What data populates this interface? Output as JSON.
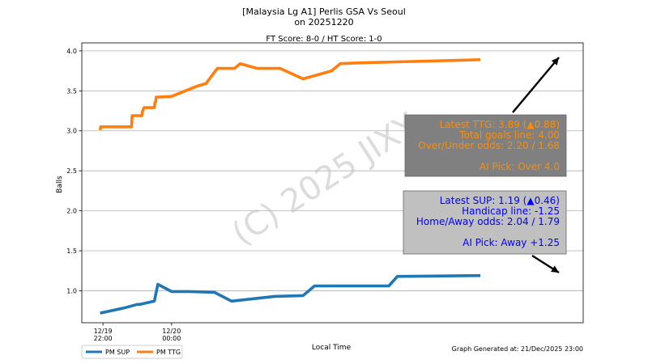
{
  "chart_data": {
    "type": "line",
    "title_lines": [
      "[Malaysia Lg A1] Perlis GSA Vs Seoul",
      "on 20251220"
    ],
    "subtitle": "FT Score: 8-0 / HT Score: 1-0",
    "xlabel": "Local Time",
    "ylabel": "Balls",
    "ylim": [
      0.6,
      4.1
    ],
    "xlim": [
      "2025-12-19 21:23",
      "2025-12-20 12:00"
    ],
    "x_ticks": [
      {
        "line1": "12/19",
        "line2": "22:00",
        "t": "2025-12-19 22:00"
      },
      {
        "line1": "12/20",
        "line2": "00:00",
        "t": "2025-12-20 00:00"
      }
    ],
    "y_ticks": [
      "1.0",
      "1.5",
      "2.0",
      "2.5",
      "3.0",
      "3.5",
      "4.0"
    ],
    "y_tick_values": [
      1.0,
      1.5,
      2.0,
      2.5,
      3.0,
      3.5,
      4.0
    ],
    "grid": "horizontal",
    "legend_position": "bottom-left",
    "generated_text": "Graph Generated at: 21/Dec/2025 23:00",
    "watermark": "(C) 2025 JIXY",
    "series": [
      {
        "name": "PM SUP",
        "color": "#1f77b4",
        "points": [
          [
            "2025-12-19 21:55",
            0.72
          ],
          [
            "2025-12-19 22:40",
            0.79
          ],
          [
            "2025-12-19 23:00",
            0.83
          ],
          [
            "2025-12-19 23:05",
            0.83
          ],
          [
            "2025-12-19 23:30",
            0.87
          ],
          [
            "2025-12-19 23:33",
            0.98
          ],
          [
            "2025-12-19 23:36",
            1.08
          ],
          [
            "2025-12-20 00:00",
            0.99
          ],
          [
            "2025-12-20 00:30",
            0.99
          ],
          [
            "2025-12-20 01:15",
            0.98
          ],
          [
            "2025-12-20 01:45",
            0.87
          ],
          [
            "2025-12-20 03:00",
            0.93
          ],
          [
            "2025-12-20 03:50",
            0.94
          ],
          [
            "2025-12-20 04:10",
            1.06
          ],
          [
            "2025-12-20 06:20",
            1.06
          ],
          [
            "2025-12-20 06:35",
            1.18
          ],
          [
            "2025-12-20 09:00",
            1.19
          ]
        ]
      },
      {
        "name": "PM TTG",
        "color": "#ff7f0e",
        "points": [
          [
            "2025-12-19 21:55",
            3.01
          ],
          [
            "2025-12-19 21:56",
            3.05
          ],
          [
            "2025-12-19 22:50",
            3.05
          ],
          [
            "2025-12-19 22:51",
            3.19
          ],
          [
            "2025-12-19 23:08",
            3.19
          ],
          [
            "2025-12-19 23:09",
            3.24
          ],
          [
            "2025-12-19 23:12",
            3.29
          ],
          [
            "2025-12-19 23:30",
            3.29
          ],
          [
            "2025-12-19 23:31",
            3.35
          ],
          [
            "2025-12-19 23:32",
            3.36
          ],
          [
            "2025-12-19 23:33",
            3.42
          ],
          [
            "2025-12-20 00:00",
            3.43
          ],
          [
            "2025-12-20 00:45",
            3.56
          ],
          [
            "2025-12-20 01:00",
            3.59
          ],
          [
            "2025-12-20 01:20",
            3.78
          ],
          [
            "2025-12-20 01:50",
            3.78
          ],
          [
            "2025-12-20 02:00",
            3.84
          ],
          [
            "2025-12-20 02:30",
            3.78
          ],
          [
            "2025-12-20 03:10",
            3.78
          ],
          [
            "2025-12-20 03:50",
            3.65
          ],
          [
            "2025-12-20 04:40",
            3.75
          ],
          [
            "2025-12-20 04:55",
            3.84
          ],
          [
            "2025-12-20 05:30",
            3.85
          ],
          [
            "2025-12-20 09:00",
            3.89
          ]
        ]
      }
    ],
    "annotations": [
      {
        "id": "ttg",
        "bg": "#808080",
        "text_color": "#ff8c00",
        "lines": [
          "Latest TTG: 3.89 (▲0.88)",
          "Total goals line: 4.00",
          "Over/Under odds: 2.20 / 1.68",
          "",
          "AI Pick: Over 4.0"
        ]
      },
      {
        "id": "sup",
        "bg": "#c0c0c0",
        "text_color": "#0000ff",
        "lines": [
          "Latest SUP: 1.19 (▲0.46)",
          "Handicap line: -1.25",
          "Home/Away odds: 2.04 / 1.79",
          "",
          "AI Pick: Away +1.25"
        ]
      }
    ]
  }
}
